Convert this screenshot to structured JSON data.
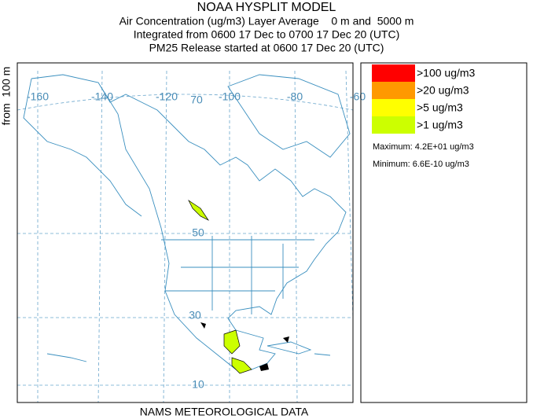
{
  "header": {
    "title": "NOAA HYSPLIT MODEL",
    "lines": [
      "Air Concentration (ug/m3) Layer Average    0 m and  5000 m",
      "Integrated from 0600 17 Dec to 0700 17 Dec 20 (UTC)",
      "PM25 Release started at 0600 17 Dec 20 (UTC)"
    ]
  },
  "map": {
    "side_label": "from  100 m",
    "longitude_labels": [
      "-160",
      "-140",
      "-120",
      "-100",
      "-80",
      "-60"
    ],
    "latitude_labels": [
      "70",
      "50",
      "30",
      "10"
    ],
    "footer": "NAMS METEOROLOGICAL DATA"
  },
  "legend": {
    "levels": [
      {
        "label": ">100 ug/m3",
        "color": "#ff0000"
      },
      {
        "label": ">20 ug/m3",
        "color": "#ff9900"
      },
      {
        "label": ">5 ug/m3",
        "color": "#ffff00"
      },
      {
        "label": ">1 ug/m3",
        "color": "#ccff00"
      }
    ],
    "maximum": "Maximum: 4.2E+01 ug/m3",
    "minimum": "Minimum: 6.6E-10 ug/m3"
  }
}
